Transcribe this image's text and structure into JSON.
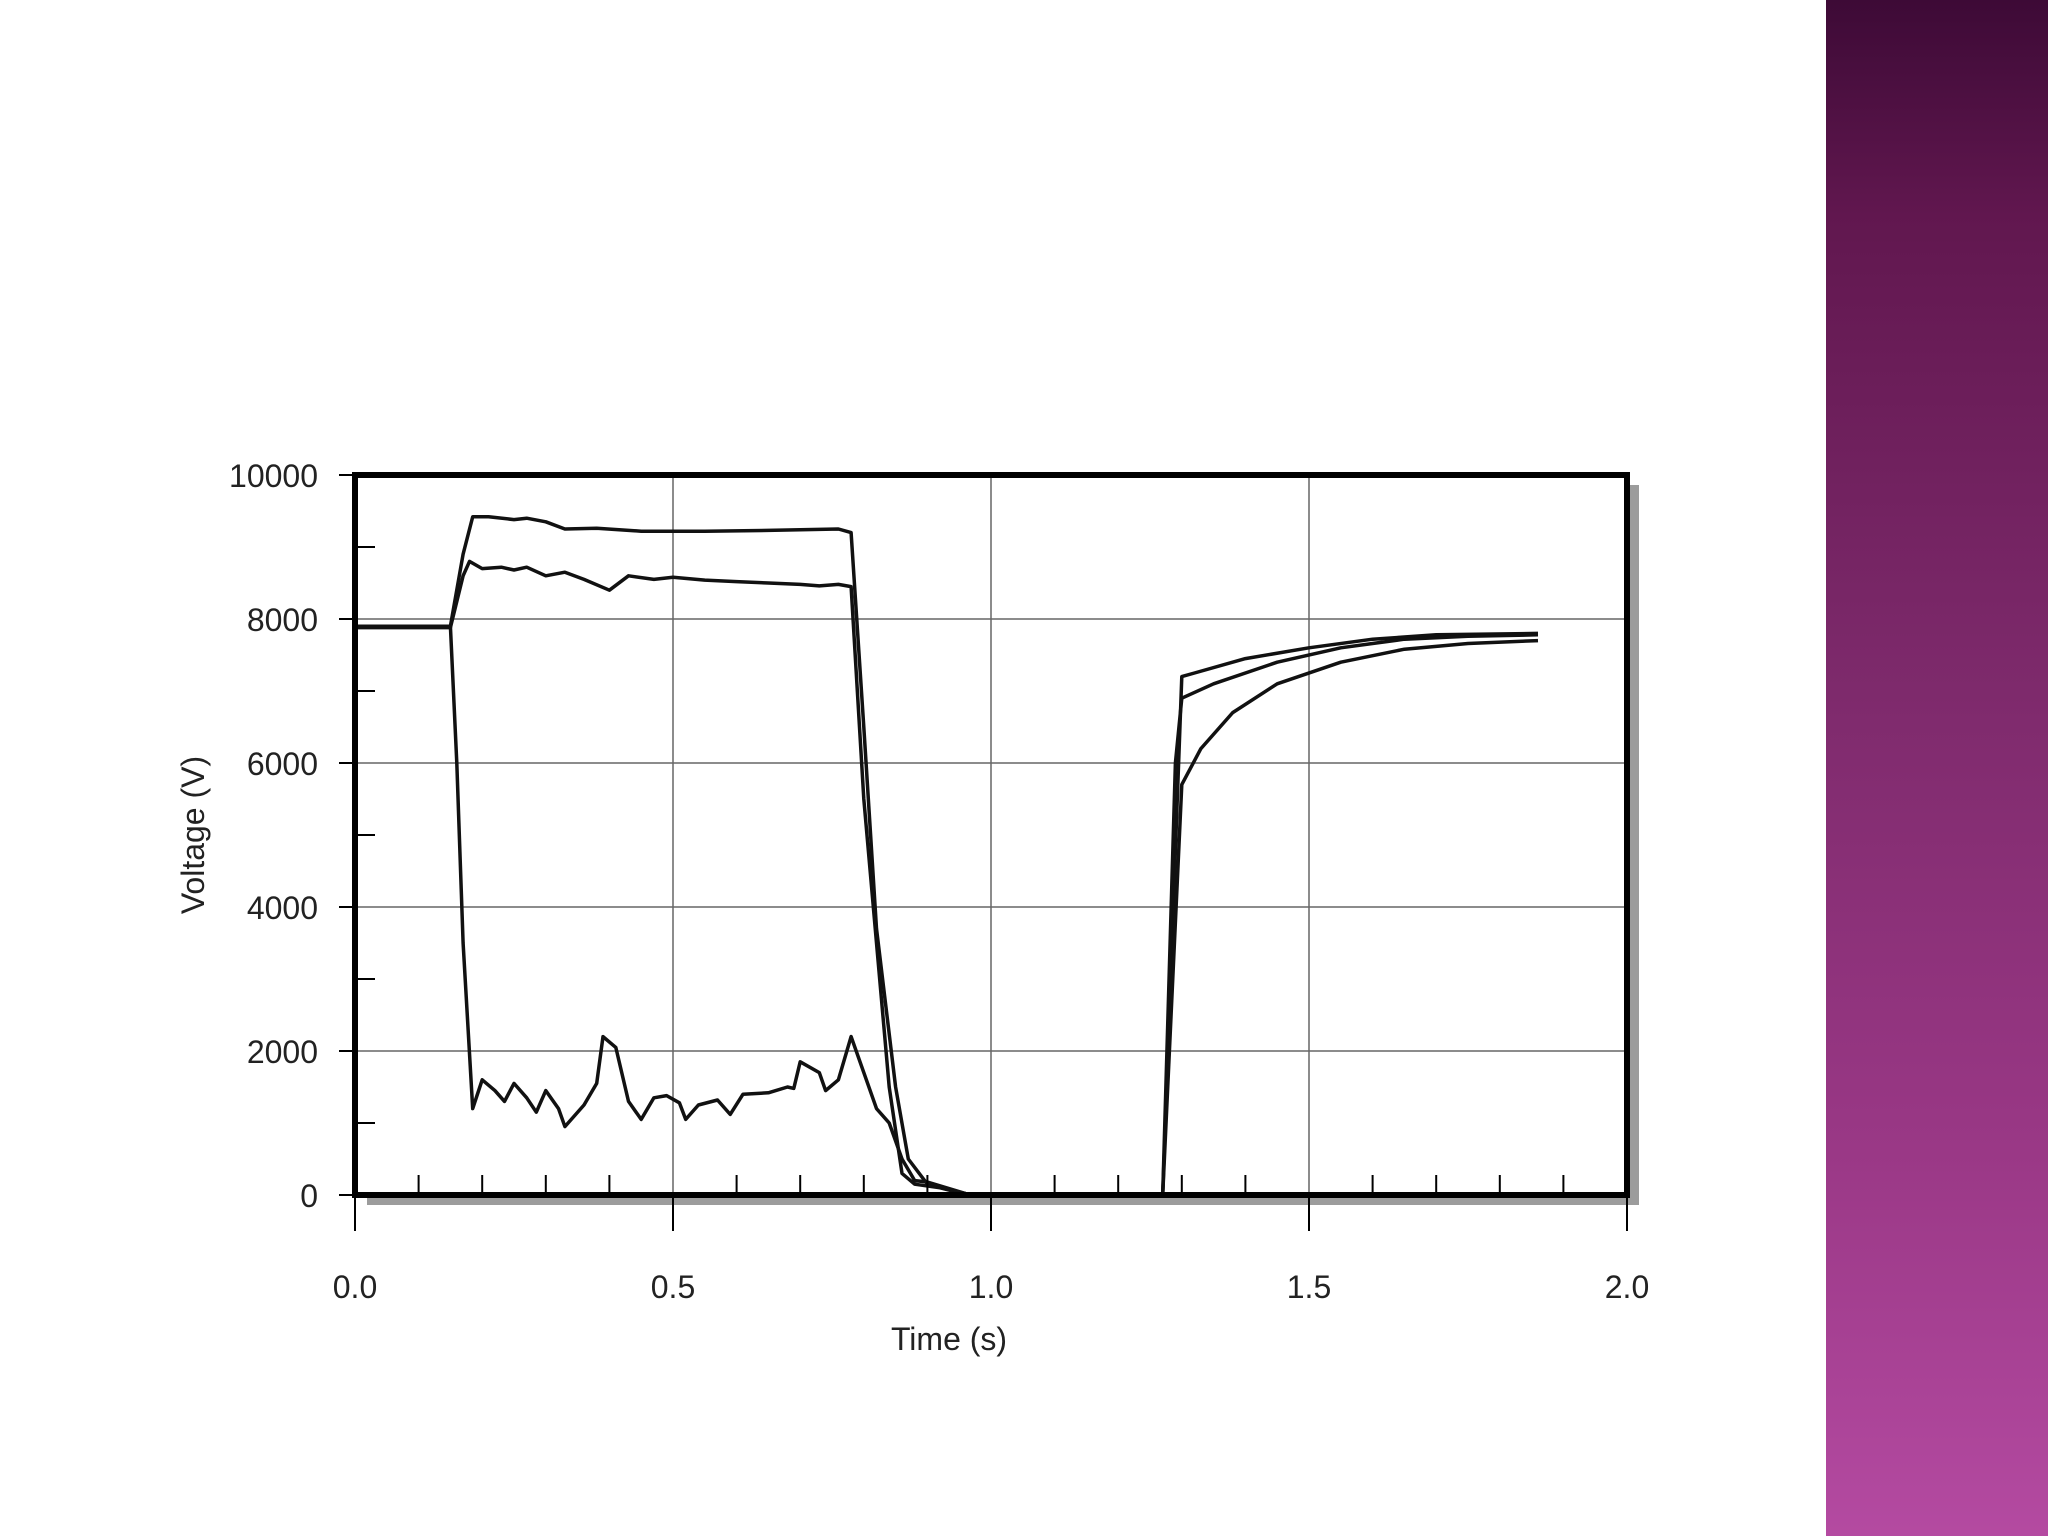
{
  "panel": {
    "accent": "#7e2a6c"
  },
  "chart_data": {
    "type": "line",
    "xlabel": "Time (s)",
    "ylabel": "Voltage (V)",
    "xlim": [
      0,
      2.0
    ],
    "ylim": [
      0,
      10000
    ],
    "xticks": [
      "0.0",
      "0.5",
      "1.0",
      "1.5",
      "2.0"
    ],
    "yticks": [
      "0",
      "2000",
      "4000",
      "6000",
      "8000",
      "10000"
    ],
    "grid": true,
    "series": [
      {
        "values": [
          [
            0,
            7900
          ],
          [
            0.15,
            7900
          ],
          [
            0.17,
            8900
          ],
          [
            0.185,
            9420
          ],
          [
            0.21,
            9420
          ],
          [
            0.25,
            9380
          ],
          [
            0.27,
            9400
          ],
          [
            0.3,
            9350
          ],
          [
            0.33,
            9250
          ],
          [
            0.38,
            9260
          ],
          [
            0.45,
            9220
          ],
          [
            0.55,
            9220
          ],
          [
            0.65,
            9230
          ],
          [
            0.76,
            9250
          ],
          [
            0.78,
            9200
          ],
          [
            0.8,
            6500
          ],
          [
            0.82,
            3700
          ],
          [
            0.85,
            1500
          ],
          [
            0.87,
            500
          ],
          [
            0.9,
            150
          ],
          [
            0.93,
            80
          ],
          [
            0.96,
            20
          ],
          [
            1.0,
            0
          ],
          [
            1.27,
            0
          ],
          [
            1.3,
            7200
          ],
          [
            1.32,
            7250
          ],
          [
            1.4,
            7450
          ],
          [
            1.5,
            7600
          ],
          [
            1.6,
            7720
          ],
          [
            1.7,
            7780
          ],
          [
            1.86,
            7800
          ]
        ]
      },
      {
        "values": [
          [
            0,
            7880
          ],
          [
            0.15,
            7880
          ],
          [
            0.17,
            8600
          ],
          [
            0.18,
            8800
          ],
          [
            0.2,
            8700
          ],
          [
            0.23,
            8720
          ],
          [
            0.25,
            8680
          ],
          [
            0.27,
            8720
          ],
          [
            0.3,
            8600
          ],
          [
            0.33,
            8650
          ],
          [
            0.36,
            8550
          ],
          [
            0.4,
            8400
          ],
          [
            0.43,
            8600
          ],
          [
            0.47,
            8550
          ],
          [
            0.5,
            8580
          ],
          [
            0.55,
            8540
          ],
          [
            0.6,
            8520
          ],
          [
            0.65,
            8500
          ],
          [
            0.7,
            8480
          ],
          [
            0.73,
            8460
          ],
          [
            0.76,
            8480
          ],
          [
            0.78,
            8450
          ],
          [
            0.8,
            5500
          ],
          [
            0.82,
            3500
          ],
          [
            0.84,
            1500
          ],
          [
            0.86,
            300
          ],
          [
            0.88,
            150
          ],
          [
            0.92,
            100
          ],
          [
            0.96,
            10
          ],
          [
            1.0,
            0
          ],
          [
            1.27,
            0
          ],
          [
            1.29,
            6000
          ],
          [
            1.3,
            6900
          ],
          [
            1.35,
            7100
          ],
          [
            1.45,
            7400
          ],
          [
            1.55,
            7600
          ],
          [
            1.65,
            7720
          ],
          [
            1.75,
            7760
          ],
          [
            1.86,
            7780
          ]
        ]
      },
      {
        "values": [
          [
            0,
            7900
          ],
          [
            0.15,
            7900
          ],
          [
            0.16,
            6000
          ],
          [
            0.17,
            3500
          ],
          [
            0.185,
            1200
          ],
          [
            0.2,
            1600
          ],
          [
            0.22,
            1450
          ],
          [
            0.235,
            1300
          ],
          [
            0.25,
            1550
          ],
          [
            0.27,
            1350
          ],
          [
            0.285,
            1150
          ],
          [
            0.3,
            1450
          ],
          [
            0.32,
            1200
          ],
          [
            0.33,
            950
          ],
          [
            0.36,
            1250
          ],
          [
            0.38,
            1550
          ],
          [
            0.39,
            2200
          ],
          [
            0.41,
            2050
          ],
          [
            0.43,
            1300
          ],
          [
            0.45,
            1050
          ],
          [
            0.47,
            1350
          ],
          [
            0.49,
            1380
          ],
          [
            0.51,
            1280
          ],
          [
            0.52,
            1050
          ],
          [
            0.54,
            1250
          ],
          [
            0.57,
            1320
          ],
          [
            0.59,
            1120
          ],
          [
            0.61,
            1400
          ],
          [
            0.65,
            1420
          ],
          [
            0.68,
            1500
          ],
          [
            0.69,
            1480
          ],
          [
            0.7,
            1850
          ],
          [
            0.73,
            1700
          ],
          [
            0.74,
            1450
          ],
          [
            0.76,
            1600
          ],
          [
            0.78,
            2200
          ],
          [
            0.8,
            1700
          ],
          [
            0.82,
            1200
          ],
          [
            0.84,
            1000
          ],
          [
            0.86,
            500
          ],
          [
            0.88,
            200
          ],
          [
            0.9,
            180
          ],
          [
            0.93,
            100
          ],
          [
            0.96,
            20
          ],
          [
            1.0,
            0
          ],
          [
            1.27,
            0
          ],
          [
            1.3,
            5700
          ],
          [
            1.33,
            6200
          ],
          [
            1.38,
            6700
          ],
          [
            1.45,
            7100
          ],
          [
            1.55,
            7400
          ],
          [
            1.65,
            7580
          ],
          [
            1.75,
            7660
          ],
          [
            1.86,
            7700
          ]
        ]
      }
    ]
  }
}
